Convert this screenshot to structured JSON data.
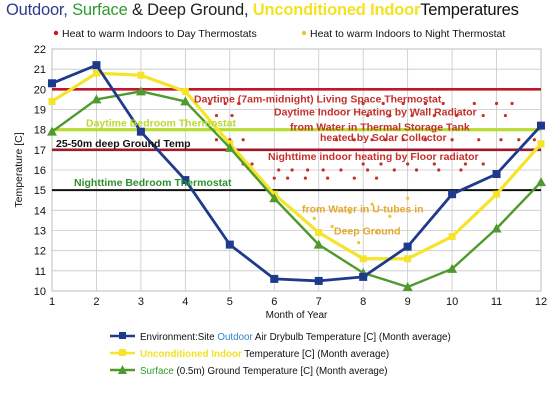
{
  "title": {
    "part1": "Outdoor,",
    "part2": "Surface",
    "part3": "& Deep Ground,",
    "part4": "Unconditioned Indoor",
    "part5": "Temperatures"
  },
  "colors": {
    "outdoor": "#1f3a8c",
    "indoor": "#f5e42a",
    "ground": "#4e9a2e",
    "thermostat_day": "#c0182a",
    "deep_ground": "#a0182a",
    "bedroom_day": "#b8dc2e",
    "bedroom_night": "#111111",
    "annotation_red": "#c4302a",
    "annotation_yellow_text": "#ffe97a",
    "annotation_green_text": "#2f8f2f",
    "grid": "#c8c8c8"
  },
  "chart_data": {
    "type": "line",
    "xlabel": "Month of Year",
    "ylabel": "Temperature [C]",
    "xlim": [
      1,
      12
    ],
    "ylim": [
      10,
      22
    ],
    "x": [
      1,
      2,
      3,
      4,
      5,
      6,
      7,
      8,
      9,
      10,
      11,
      12
    ],
    "grid": true,
    "series": [
      {
        "name": "Environment:Site Outdoor Air Drybulb Temperature [C] (Month average)",
        "legend_parts": [
          "Environment:Site ",
          "Outdoor",
          " Air Drybulb Temperature [C] (Month average)"
        ],
        "marker": "square",
        "values": [
          20.3,
          21.2,
          17.9,
          15.5,
          12.3,
          10.6,
          10.5,
          10.7,
          12.2,
          14.8,
          15.8,
          18.2
        ]
      },
      {
        "name": "Unconditioned Indoor Temperature [C] (Month average)",
        "legend_parts": [
          "Unconditioned Indoor",
          " Temperature [C] (Month average)"
        ],
        "marker": "square",
        "values": [
          19.4,
          20.8,
          20.7,
          19.9,
          17.3,
          14.8,
          12.9,
          11.6,
          11.6,
          12.7,
          14.8,
          17.3
        ]
      },
      {
        "name": "Surface (0.5m) Ground Temperature [C] (Month average)",
        "legend_parts": [
          "Surface",
          " (0.5m) Ground Temperature [C] (Month average)"
        ],
        "marker": "triangle",
        "values": [
          17.9,
          19.5,
          19.9,
          19.4,
          17.1,
          14.6,
          12.3,
          10.9,
          10.2,
          11.1,
          13.1,
          15.4
        ]
      }
    ],
    "reference_lines": [
      {
        "label": "Daytime (7am-midnight) Living Space Thermostat",
        "y": 20
      },
      {
        "label": "Daytime Bedroom Thermostat",
        "y": 18
      },
      {
        "label": "25-50m deep Ground Temp",
        "y": 17
      },
      {
        "label": "Nighttime Bedroom Thermostat",
        "y": 15
      }
    ],
    "annotations": [
      "Daytime Indoor Heating by Wall Radiator",
      "from Water in Thermal Storage Tank",
      "heated by Solar Collector",
      "Nighttime indoor heating by Floor radiator",
      "from Water in U-tubes in",
      "Deep Ground"
    ],
    "top_legend": [
      {
        "symbol": "dots-red",
        "text": "Heat to warm Indoors to Day Thermostats"
      },
      {
        "symbol": "dots-yellow",
        "text": "Heat to warm Indoors to Night Thermostat"
      }
    ]
  }
}
